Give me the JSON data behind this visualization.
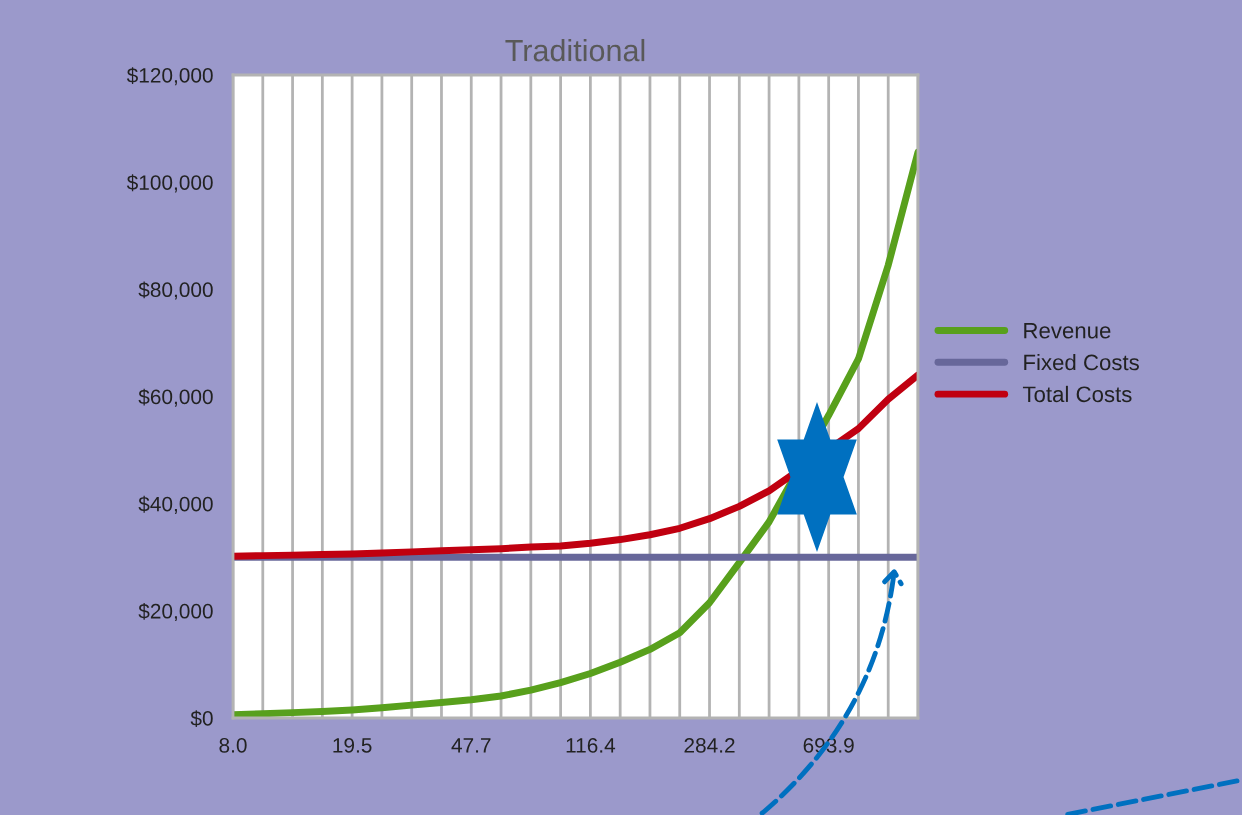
{
  "chart_data": {
    "type": "line",
    "title": "Traditional",
    "categories": [
      "8.0",
      null,
      null,
      null,
      "19.5",
      null,
      null,
      null,
      "47.7",
      null,
      null,
      null,
      "116.4",
      null,
      null,
      null,
      "284.2",
      null,
      null,
      null,
      "693.9",
      null,
      null,
      null
    ],
    "series": [
      {
        "name": "Revenue",
        "color": "#58a01c",
        "values": [
          600,
          800,
          1000,
          1200,
          1500,
          1900,
          2400,
          2900,
          3400,
          4100,
          5200,
          6600,
          8300,
          10400,
          12800,
          15900,
          21500,
          29000,
          36600,
          null,
          56500,
          67000,
          84500,
          105600
        ]
      },
      {
        "name": "Fixed Costs",
        "color": "#67679a",
        "values": [
          30000,
          30000,
          30000,
          30000,
          30000,
          30000,
          30000,
          30000,
          30000,
          30000,
          30000,
          30000,
          30000,
          30000,
          30000,
          30000,
          30000,
          30000,
          30000,
          30000,
          30000,
          30000,
          30000,
          30000
        ]
      },
      {
        "name": "Total Costs",
        "color": "#c00010",
        "values": [
          30200,
          30300,
          30400,
          30500,
          30600,
          30800,
          31000,
          31200,
          31400,
          31600,
          31900,
          32100,
          32600,
          33300,
          34200,
          35400,
          37200,
          39500,
          42400,
          null,
          null,
          54000,
          59500,
          64000
        ]
      }
    ],
    "ylim": [
      0,
      120000
    ],
    "yticks": [
      {
        "value": 0,
        "label": "$0"
      },
      {
        "value": 20000,
        "label": "$20,000"
      },
      {
        "value": 40000,
        "label": "$40,000"
      },
      {
        "value": 60000,
        "label": "$60,000"
      },
      {
        "value": 80000,
        "label": "$80,000"
      },
      {
        "value": 100000,
        "label": "$100,000"
      },
      {
        "value": 120000,
        "label": "$120,000"
      }
    ],
    "grid": "x",
    "legend": "right",
    "marker": "none",
    "line_style": "solid"
  }
}
